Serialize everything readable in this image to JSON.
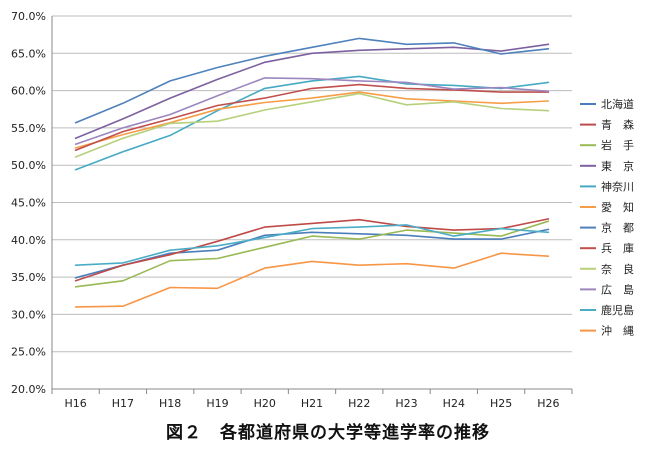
{
  "chart_data": {
    "type": "line",
    "title": "図２　各都道府県の大学等進学率の推移",
    "xlabel": "",
    "ylabel": "",
    "categories": [
      "H16",
      "H17",
      "H18",
      "H19",
      "H20",
      "H21",
      "H22",
      "H23",
      "H24",
      "H25",
      "H26"
    ],
    "ylim": [
      20.0,
      70.0
    ],
    "yticks": [
      20.0,
      25.0,
      30.0,
      35.0,
      40.0,
      45.0,
      50.0,
      55.0,
      60.0,
      65.0,
      70.0
    ],
    "ytick_labels": [
      "20.0%",
      "25.0%",
      "30.0%",
      "35.0%",
      "40.0%",
      "45.0%",
      "50.0%",
      "55.0%",
      "60.0%",
      "65.0%",
      "70.0%"
    ],
    "grid": true,
    "legend_position": "right",
    "series": [
      {
        "name": "北海道",
        "color": "#4a7ebb",
        "values": [
          34.9,
          36.6,
          38.2,
          38.6,
          40.6,
          41.0,
          40.8,
          40.6,
          40.1,
          40.1,
          41.4
        ]
      },
      {
        "name": "青　森",
        "color": "#be4b48",
        "values": [
          34.5,
          36.6,
          38.0,
          39.8,
          41.7,
          42.2,
          42.7,
          41.8,
          41.3,
          41.5,
          42.8
        ]
      },
      {
        "name": "岩　手",
        "color": "#98b954",
        "values": [
          33.7,
          34.5,
          37.2,
          37.5,
          39.0,
          40.5,
          40.1,
          41.3,
          40.9,
          40.5,
          42.5
        ]
      },
      {
        "name": "東　京",
        "color": "#7d60a0",
        "values": [
          53.6,
          56.2,
          59.0,
          61.5,
          63.8,
          65.0,
          65.4,
          65.6,
          65.8,
          65.3,
          66.2
        ]
      },
      {
        "name": "神奈川",
        "color": "#46aac4",
        "values": [
          49.4,
          51.8,
          54.0,
          57.3,
          60.3,
          61.3,
          61.9,
          60.9,
          60.7,
          60.3,
          61.1
        ]
      },
      {
        "name": "愛　知",
        "color": "#f69d47",
        "values": [
          52.3,
          54.1,
          55.7,
          57.5,
          58.4,
          59.0,
          59.8,
          58.9,
          58.6,
          58.3,
          58.6
        ]
      },
      {
        "name": "京　都",
        "color": "#4f81bd",
        "values": [
          55.7,
          58.3,
          61.3,
          63.1,
          64.6,
          65.8,
          67.0,
          66.2,
          66.4,
          64.9,
          65.6
        ]
      },
      {
        "name": "兵　庫",
        "color": "#c0504d",
        "values": [
          52.0,
          54.5,
          56.2,
          58.0,
          59.0,
          60.3,
          60.8,
          60.3,
          60.1,
          59.8,
          59.8
        ]
      },
      {
        "name": "奈　良",
        "color": "#b7d07c",
        "values": [
          51.1,
          53.6,
          55.6,
          55.9,
          57.4,
          58.5,
          59.6,
          58.1,
          58.5,
          57.6,
          57.3
        ]
      },
      {
        "name": "広　島",
        "color": "#9c86c0",
        "values": [
          52.8,
          55.0,
          56.8,
          59.3,
          61.7,
          61.6,
          61.3,
          61.1,
          60.2,
          60.4,
          59.9
        ]
      },
      {
        "name": "鹿児島",
        "color": "#4bacc6",
        "values": [
          36.6,
          36.9,
          38.6,
          39.2,
          40.3,
          41.5,
          41.7,
          42.0,
          40.5,
          41.5,
          41.0
        ]
      },
      {
        "name": "沖　縄",
        "color": "#f79646",
        "values": [
          31.0,
          31.1,
          33.6,
          33.5,
          36.2,
          37.1,
          36.6,
          36.8,
          36.2,
          38.2,
          37.8
        ]
      }
    ]
  }
}
